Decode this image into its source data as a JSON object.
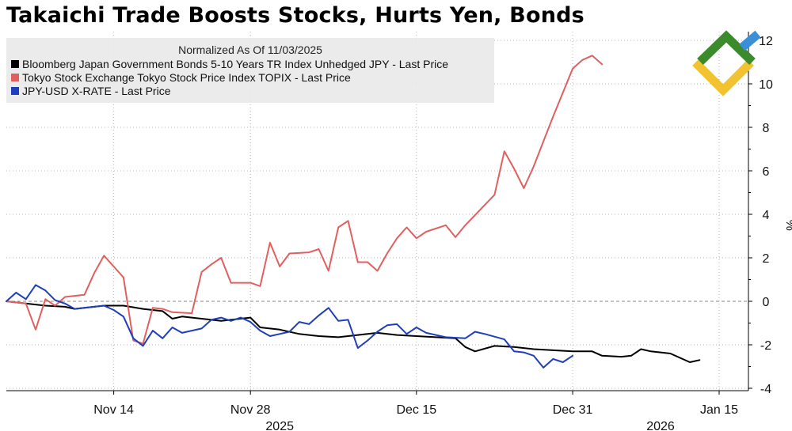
{
  "chart_data": {
    "type": "line",
    "title": "Takaichi Trade Boosts Stocks, Hurts Yen, Bonds",
    "legend_header": "Normalized As Of 11/03/2025",
    "legend_position": "top-left",
    "ylabel": "%",
    "ylim": [
      -4.5,
      13
    ],
    "yticks": [
      -4,
      -2,
      0,
      2,
      4,
      6,
      8,
      10,
      12
    ],
    "ytick_labels": [
      "-4",
      "-2",
      "0",
      "2",
      "4",
      "6",
      "8",
      "10",
      "12"
    ],
    "xlim": [
      0,
      73
    ],
    "xticks": [
      {
        "x": 11,
        "label": "Nov 14"
      },
      {
        "x": 25,
        "label": "Nov 28"
      },
      {
        "x": 42,
        "label": "Dec 15"
      },
      {
        "x": 58,
        "label": "Dec 31"
      },
      {
        "x": 73,
        "label": "Jan 15"
      }
    ],
    "year_labels": [
      {
        "x": 28,
        "label": "2025"
      },
      {
        "x": 67,
        "label": "2026"
      }
    ],
    "grid": true,
    "series": [
      {
        "name": "Bloomberg Japan Government Bonds 5-10 Years TR Index Unhedged JPY - Last Price",
        "color": "#000000",
        "points": [
          [
            0,
            0
          ],
          [
            2,
            -0.1
          ],
          [
            4,
            -0.2
          ],
          [
            6,
            -0.25
          ],
          [
            7,
            -0.35
          ],
          [
            8,
            -0.3
          ],
          [
            10,
            -0.2
          ],
          [
            12,
            -0.2
          ],
          [
            14,
            -0.35
          ],
          [
            16,
            -0.45
          ],
          [
            17,
            -0.8
          ],
          [
            18,
            -0.7
          ],
          [
            20,
            -0.8
          ],
          [
            22,
            -0.9
          ],
          [
            24,
            -0.8
          ],
          [
            25,
            -0.75
          ],
          [
            26,
            -1.2
          ],
          [
            28,
            -1.3
          ],
          [
            30,
            -1.5
          ],
          [
            32,
            -1.6
          ],
          [
            34,
            -1.65
          ],
          [
            36,
            -1.55
          ],
          [
            38,
            -1.45
          ],
          [
            40,
            -1.55
          ],
          [
            42,
            -1.6
          ],
          [
            44,
            -1.65
          ],
          [
            46,
            -1.7
          ],
          [
            47,
            -2.1
          ],
          [
            48,
            -2.3
          ],
          [
            50,
            -2.05
          ],
          [
            52,
            -2.1
          ],
          [
            54,
            -2.2
          ],
          [
            56,
            -2.25
          ],
          [
            58,
            -2.3
          ],
          [
            60,
            -2.3
          ],
          [
            61,
            -2.5
          ],
          [
            63,
            -2.55
          ],
          [
            64,
            -2.5
          ],
          [
            65,
            -2.2
          ],
          [
            66,
            -2.3
          ],
          [
            68,
            -2.4
          ],
          [
            69,
            -2.6
          ],
          [
            70,
            -2.8
          ],
          [
            71,
            -2.7
          ]
        ]
      },
      {
        "name": "Tokyo Stock Exchange Tokyo Stock Price Index TOPIX - Last Price",
        "color": "#e06060",
        "points": [
          [
            0,
            0
          ],
          [
            2,
            -0.1
          ],
          [
            3,
            -1.3
          ],
          [
            4,
            0.1
          ],
          [
            5,
            -0.2
          ],
          [
            6,
            0.2
          ],
          [
            8,
            0.3
          ],
          [
            9,
            1.3
          ],
          [
            10,
            2.1
          ],
          [
            11,
            1.6
          ],
          [
            12,
            1.1
          ],
          [
            13,
            -1.8
          ],
          [
            14,
            -1.95
          ],
          [
            15,
            -0.3
          ],
          [
            16,
            -0.35
          ],
          [
            17,
            -0.5
          ],
          [
            19,
            -0.55
          ],
          [
            20,
            1.35
          ],
          [
            21,
            1.7
          ],
          [
            22,
            2.0
          ],
          [
            23,
            0.85
          ],
          [
            25,
            0.85
          ],
          [
            26,
            0.7
          ],
          [
            27,
            2.7
          ],
          [
            28,
            1.6
          ],
          [
            29,
            2.2
          ],
          [
            31,
            2.25
          ],
          [
            32,
            2.4
          ],
          [
            33,
            1.4
          ],
          [
            34,
            3.4
          ],
          [
            35,
            3.7
          ],
          [
            36,
            1.8
          ],
          [
            37,
            1.8
          ],
          [
            38,
            1.4
          ],
          [
            39,
            2.2
          ],
          [
            40,
            2.9
          ],
          [
            41,
            3.4
          ],
          [
            42,
            2.9
          ],
          [
            43,
            3.2
          ],
          [
            45,
            3.5
          ],
          [
            46,
            2.95
          ],
          [
            47,
            3.5
          ],
          [
            50,
            4.9
          ],
          [
            51,
            6.9
          ],
          [
            52,
            6.1
          ],
          [
            53,
            5.2
          ],
          [
            54,
            6.2
          ],
          [
            56,
            8.5
          ],
          [
            58,
            10.7
          ],
          [
            59,
            11.1
          ],
          [
            60,
            11.3
          ],
          [
            61,
            10.9
          ]
        ]
      },
      {
        "name": "JPY-USD X-RATE - Last Price",
        "color": "#1f3fb8",
        "points": [
          [
            0,
            0
          ],
          [
            1,
            0.4
          ],
          [
            2,
            0.1
          ],
          [
            3,
            0.75
          ],
          [
            4,
            0.5
          ],
          [
            5,
            0.05
          ],
          [
            6,
            -0.1
          ],
          [
            7,
            -0.35
          ],
          [
            8,
            -0.3
          ],
          [
            10,
            -0.2
          ],
          [
            11,
            -0.4
          ],
          [
            12,
            -0.7
          ],
          [
            13,
            -1.7
          ],
          [
            14,
            -2.05
          ],
          [
            15,
            -1.35
          ],
          [
            16,
            -1.7
          ],
          [
            17,
            -1.2
          ],
          [
            18,
            -1.45
          ],
          [
            20,
            -1.25
          ],
          [
            21,
            -0.85
          ],
          [
            22,
            -0.75
          ],
          [
            23,
            -0.9
          ],
          [
            24,
            -0.75
          ],
          [
            25,
            -0.95
          ],
          [
            26,
            -1.35
          ],
          [
            27,
            -1.6
          ],
          [
            28,
            -1.5
          ],
          [
            29,
            -1.4
          ],
          [
            30,
            -0.95
          ],
          [
            31,
            -1.05
          ],
          [
            32,
            -0.65
          ],
          [
            33,
            -0.3
          ],
          [
            34,
            -0.9
          ],
          [
            35,
            -0.85
          ],
          [
            36,
            -2.15
          ],
          [
            37,
            -1.8
          ],
          [
            38,
            -1.4
          ],
          [
            39,
            -1.1
          ],
          [
            40,
            -1.05
          ],
          [
            41,
            -1.5
          ],
          [
            42,
            -1.2
          ],
          [
            43,
            -1.45
          ],
          [
            45,
            -1.65
          ],
          [
            47,
            -1.7
          ],
          [
            48,
            -1.4
          ],
          [
            49,
            -1.5
          ],
          [
            51,
            -1.75
          ],
          [
            52,
            -2.3
          ],
          [
            53,
            -2.35
          ],
          [
            54,
            -2.5
          ],
          [
            55,
            -3.05
          ],
          [
            56,
            -2.65
          ],
          [
            57,
            -2.8
          ],
          [
            58,
            -2.5
          ]
        ]
      }
    ]
  }
}
